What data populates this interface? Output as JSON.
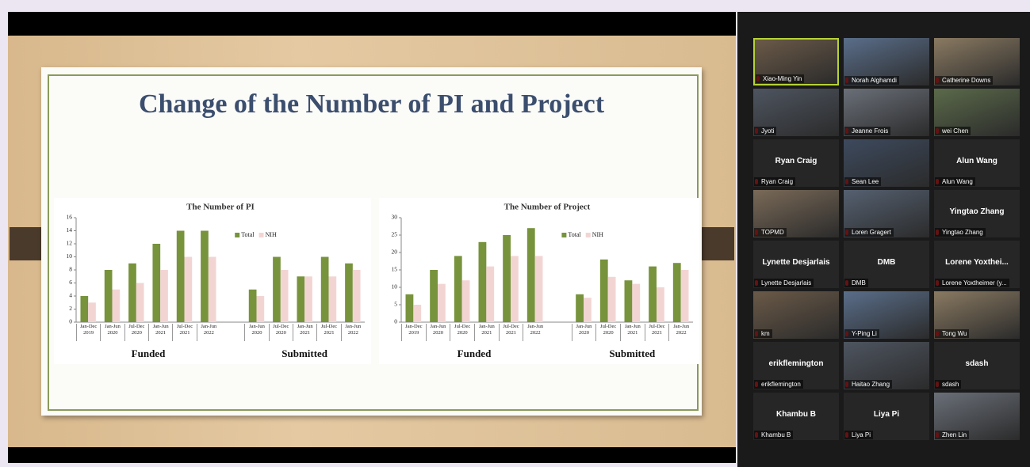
{
  "slide": {
    "title": "Change of the Number of PI and Project"
  },
  "chart_data": [
    {
      "type": "bar",
      "title": "The Number of PI",
      "categories": [
        "Jan-Dec\n2019",
        "Jan-Jun\n2020",
        "Jul-Dec\n2020",
        "Jan-Jun\n2021",
        "Jul-Dec\n2021",
        "Jan-Jun\n2022",
        null,
        "Jan-Jun\n2020",
        "Jul-Dec\n2020",
        "Jan-Jun\n2021",
        "Jul-Dec\n2021",
        "Jan-Jun\n2022"
      ],
      "groups": [
        "Funded",
        "Submitted"
      ],
      "series": [
        {
          "name": "Total",
          "color": "#77933c",
          "values": [
            4,
            8,
            9,
            12,
            14,
            14,
            null,
            5,
            10,
            7,
            10,
            9
          ]
        },
        {
          "name": "NIH",
          "color": "#f2d5d3",
          "values": [
            3,
            5,
            6,
            8,
            10,
            10,
            null,
            4,
            8,
            7,
            7,
            8
          ]
        }
      ],
      "ylim": [
        0,
        16
      ],
      "yticks": [
        0,
        2,
        4,
        6,
        8,
        10,
        12,
        14,
        16
      ],
      "grid": false,
      "legend": "upper right"
    },
    {
      "type": "bar",
      "title": "The Number of Project",
      "categories": [
        "Jan-Dec\n2019",
        "Jan-Jun\n2020",
        "Jul-Dec\n2020",
        "Jan-Jun\n2021",
        "Jul-Dec\n2021",
        "Jan-Jun\n2022",
        null,
        "Jan-Jun\n2020",
        "Jul-Dec\n2020",
        "Jan-Jun\n2021",
        "Jul-Dec\n2021",
        "Jan-Jun\n2022"
      ],
      "groups": [
        "Funded",
        "Submitted"
      ],
      "series": [
        {
          "name": "Total",
          "color": "#77933c",
          "values": [
            8,
            15,
            19,
            23,
            25,
            27,
            null,
            8,
            18,
            12,
            16,
            17
          ]
        },
        {
          "name": "NIH",
          "color": "#f2d5d3",
          "values": [
            5,
            11,
            12,
            16,
            19,
            19,
            null,
            7,
            13,
            11,
            10,
            15
          ]
        }
      ],
      "ylim": [
        0,
        30
      ],
      "yticks": [
        0,
        5,
        10,
        15,
        20,
        25,
        30
      ],
      "grid": false,
      "legend": "upper right"
    }
  ],
  "participants": [
    {
      "name": "Xiao-Ming Yin",
      "speaking": true
    },
    {
      "name": "Norah Alghamdi"
    },
    {
      "name": "Catherine Downs"
    },
    {
      "name": "Jyoti"
    },
    {
      "name": "Jeanne Frois"
    },
    {
      "name": "wei Chen"
    },
    {
      "name": "Ryan Craig",
      "display": "Ryan Craig"
    },
    {
      "name": "Sean Lee"
    },
    {
      "name": "Alun Wang",
      "display": "Alun Wang"
    },
    {
      "name": "TOPMD"
    },
    {
      "name": "Loren Gragert"
    },
    {
      "name": "Yingtao Zhang",
      "display": "Yingtao Zhang"
    },
    {
      "name": "Lynette Desjarlais",
      "display": "Lynette Desjarlais"
    },
    {
      "name": "DMB",
      "display": "DMB"
    },
    {
      "name": "Lorene Yoxtheimer (y...",
      "display": "Lorene Yoxthei..."
    },
    {
      "name": "km"
    },
    {
      "name": "Y-Ping Li"
    },
    {
      "name": "Tong Wu"
    },
    {
      "name": "erikflemington",
      "display": "erikflemington"
    },
    {
      "name": "Haitao Zhang"
    },
    {
      "name": "sdash",
      "display": "sdash"
    },
    {
      "name": "Khambu B",
      "display": "Khambu B"
    },
    {
      "name": "Liya Pi",
      "display": "Liya Pi"
    },
    {
      "name": "Zhen Lin"
    }
  ]
}
